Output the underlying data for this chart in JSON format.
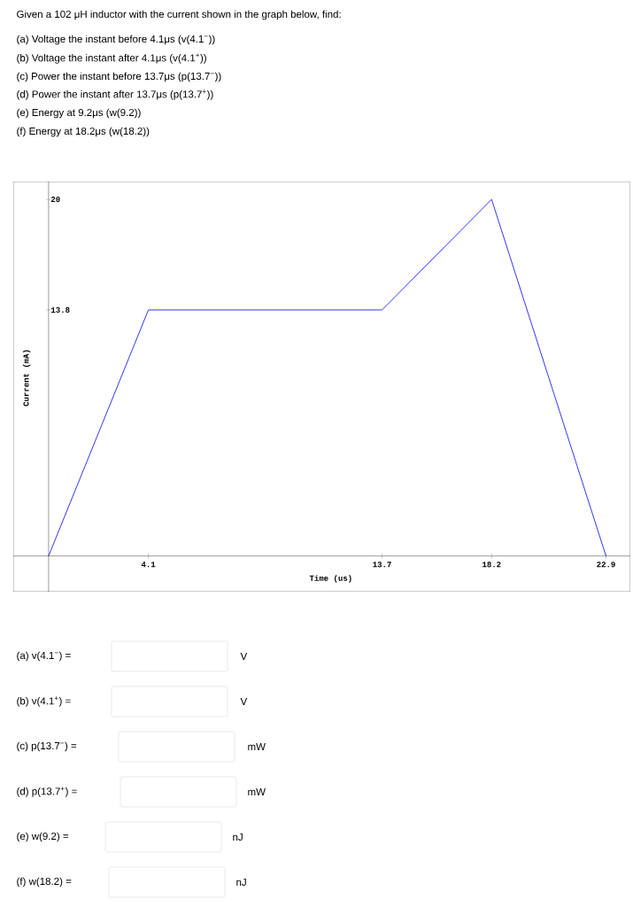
{
  "chart_data": {
    "type": "line",
    "title": "Given a 102 μH inductor with the current shown in the graph below, find:",
    "xlabel": "Time (us)",
    "ylabel": "Current (mA)",
    "x": [
      0,
      4.1,
      13.7,
      18.2,
      22.9
    ],
    "series": [
      {
        "color": "#0000ff",
        "values": [
          0,
          13.8,
          13.8,
          20,
          0
        ]
      }
    ],
    "xlim": [
      -1.45,
      23.9
    ],
    "ylim": [
      -2,
      21
    ],
    "xticks": [
      4.1,
      13.7,
      18.2,
      22.9
    ],
    "yticks": [
      13.8,
      20
    ],
    "marker": "none",
    "line_style": "solid",
    "annotations": [
      "(a) Voltage the instant before 4.1μs (v(4.1$^{−}$))",
      "(b) Voltage the instant after 4.1μs (v(4.1$^{+}$))",
      "(c) Power the instant before 13.7μs (p(13.7$^{−}$))",
      "(d) Power the instant after 13.7μs (p(13.7$^{+}$))",
      "(e) Energy at 9.2μs (w(9.2))",
      "(f) Energy at 18.2μs (w(18.2))",
      "(a) v(4.1$^{−}$) =",
      "(b) v(4.1$^{+}$) =",
      "(c) p(13.7$^{−}$) =",
      "(d) p(13.7$^{+}$) =",
      "(e) w(9.2) =",
      "(f) w(18.2) =",
      "V",
      "V",
      "mW",
      "mW",
      "nJ",
      "nJ"
    ]
  }
}
